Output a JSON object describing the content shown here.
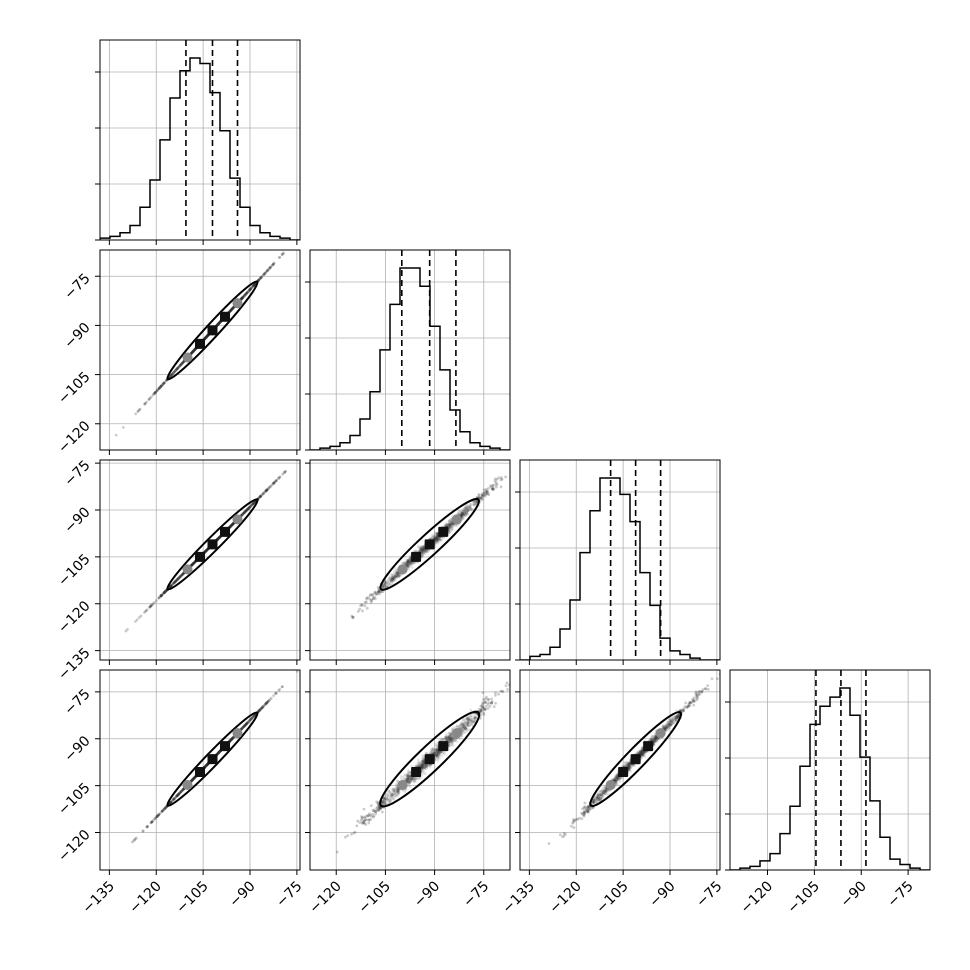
{
  "chart_data": {
    "type": "corner",
    "n_params": 4,
    "colors": {
      "line": "#000000",
      "grid": "#b0b0b0",
      "points": "#333333",
      "background": "#ffffff"
    },
    "grid": true,
    "diagonal_ranges": [
      [
        -138,
        -74
      ],
      [
        -128,
        -67
      ],
      [
        -138,
        -74
      ],
      [
        -132,
        -68
      ]
    ],
    "diagonal_xticks": [
      [
        -135,
        -120,
        -105,
        -90,
        -75
      ],
      [
        -120,
        -105,
        -90,
        -75
      ],
      [
        -135,
        -120,
        -105,
        -90,
        -75
      ],
      [
        -120,
        -105,
        -90,
        -75
      ]
    ],
    "diagonal_ytick_fracs": [
      0.0,
      0.28,
      0.56,
      0.84
    ],
    "row_yranges": [
      null,
      [
        -128,
        -67
      ],
      [
        -138,
        -74
      ],
      [
        -132,
        -68
      ]
    ],
    "row_yticks": [
      [],
      [
        -75,
        -90,
        -105,
        -120
      ],
      [
        -75,
        -90,
        -105,
        -120,
        -135
      ],
      [
        -75,
        -90,
        -105,
        -120
      ]
    ],
    "x_tick_labels_shown": [
      [
        "−135",
        "−120",
        "−105",
        "−90",
        "−75"
      ],
      [
        "−120",
        "−105",
        "−90",
        "−75"
      ],
      [
        "−135",
        "−120",
        "−105",
        "−90",
        "−75"
      ],
      [
        "−120",
        "−105",
        "−90",
        "−75"
      ]
    ],
    "y_tick_labels_shown": [
      [],
      [
        "−75",
        "−90",
        "−105",
        "−120"
      ],
      [
        "−75",
        "−90",
        "−105",
        "−120",
        "−135"
      ],
      [
        "−75",
        "−90",
        "−105",
        "−120"
      ]
    ],
    "histograms": [
      {
        "counts": [
          1,
          2,
          4,
          8,
          18,
          33,
          55,
          78,
          93,
          100,
          97,
          81,
          60,
          34,
          18,
          8,
          4,
          2,
          1,
          0
        ],
        "quantiles": [
          -110.5,
          -102.0,
          -94.0
        ]
      },
      {
        "counts": [
          0,
          1,
          2,
          4,
          8,
          17,
          32,
          55,
          80,
          100,
          100,
          90,
          68,
          44,
          22,
          10,
          4,
          2,
          1,
          0
        ],
        "quantiles": [
          -100.0,
          -91.5,
          -83.5
        ]
      },
      {
        "counts": [
          0,
          2,
          3,
          7,
          17,
          33,
          59,
          82,
          100,
          100,
          91,
          76,
          48,
          30,
          12,
          5,
          3,
          1,
          0,
          0
        ],
        "quantiles": [
          -109.0,
          -101.0,
          -93.0
        ]
      },
      {
        "counts": [
          0,
          1,
          2,
          5,
          9,
          20,
          35,
          57,
          80,
          90,
          95,
          100,
          85,
          62,
          38,
          18,
          6,
          3,
          1,
          0
        ],
        "quantiles": [
          -104.5,
          -96.5,
          -88.5
        ]
      }
    ],
    "medians": [
      -102.0,
      -91.5,
      -101.0,
      -96.5
    ],
    "sigmas": [
      8.2,
      8.5,
      8.2,
      8.5
    ],
    "correlations": [
      [
        1,
        1,
        1,
        1
      ],
      [
        1,
        1,
        0.995,
        0.99
      ],
      [
        1,
        0.995,
        1,
        0.996
      ],
      [
        1,
        0.99,
        0.996,
        1
      ]
    ]
  }
}
